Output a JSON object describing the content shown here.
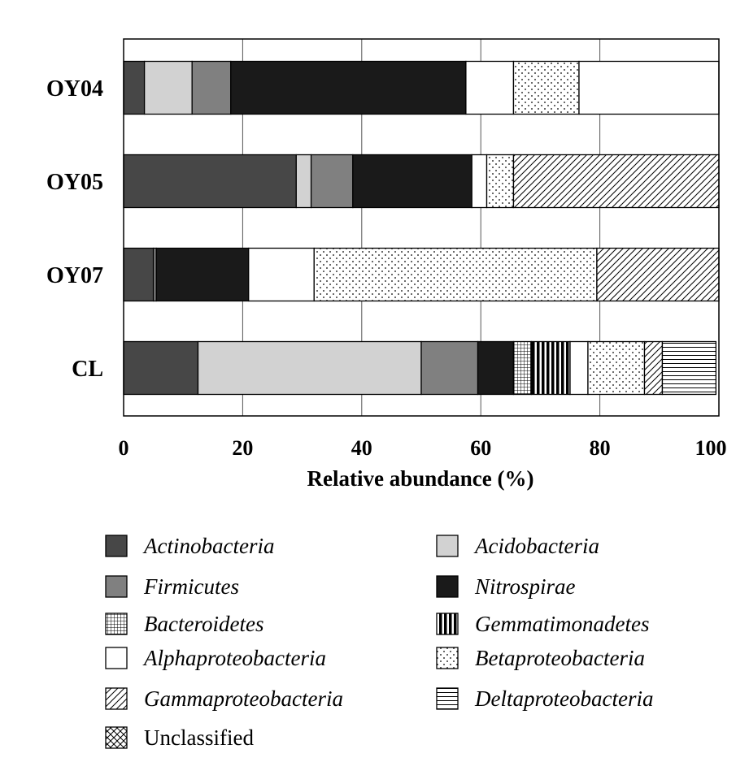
{
  "chart_data": {
    "type": "bar",
    "orientation": "horizontal",
    "stacked": true,
    "title": "",
    "xlabel": "Relative abundance (%)",
    "ylabel": "",
    "xlim": [
      0,
      100
    ],
    "xticks": [
      0,
      20,
      40,
      60,
      80,
      100
    ],
    "grid": "vertical",
    "legend_position": "bottom",
    "categories": [
      "OY04",
      "OY05",
      "OY07",
      "CL"
    ],
    "series": [
      {
        "name": "Actinobacteria",
        "pattern": "dark",
        "values": [
          3.5,
          29,
          5,
          12.5
        ]
      },
      {
        "name": "Acidobacteria",
        "pattern": "light",
        "values": [
          8,
          2.5,
          0,
          37.5
        ]
      },
      {
        "name": "Firmicutes",
        "pattern": "mid",
        "values": [
          6.5,
          7,
          0.5,
          9.5
        ]
      },
      {
        "name": "Nitrospirae",
        "pattern": "black",
        "values": [
          39.5,
          20,
          15.5,
          6
        ]
      },
      {
        "name": "Bacteroidetes",
        "pattern": "grid",
        "values": [
          0,
          0,
          0,
          3
        ]
      },
      {
        "name": "Gemmatimonadetes",
        "pattern": "vstripe",
        "values": [
          0,
          0,
          0,
          6.5
        ]
      },
      {
        "name": "Alphaproteobacteria",
        "pattern": "white",
        "values": [
          8,
          2.5,
          11,
          3
        ]
      },
      {
        "name": "Betaproteobacteria",
        "pattern": "dots",
        "values": [
          11,
          4.5,
          47.5,
          9.5
        ]
      },
      {
        "name": "Gammaproteobacteria",
        "pattern": "diag",
        "values": [
          0,
          34.5,
          20.5,
          3
        ]
      },
      {
        "name": "Deltaproteobacteria",
        "pattern": "hstripe",
        "values": [
          0,
          0,
          0,
          9
        ]
      },
      {
        "name": "Unclassified",
        "pattern": "cross",
        "values": [
          0,
          0,
          0,
          0
        ]
      }
    ],
    "trailing_white_segment": [
      23.5,
      0,
      0,
      0
    ]
  },
  "legend": {
    "items": [
      {
        "name": "Actinobacteria",
        "pattern": "dark",
        "italic": true
      },
      {
        "name": "Acidobacteria",
        "pattern": "light",
        "italic": true
      },
      {
        "name": "Firmicutes",
        "pattern": "mid",
        "italic": true
      },
      {
        "name": "Nitrospirae",
        "pattern": "black",
        "italic": true
      },
      {
        "name": "Bacteroidetes",
        "pattern": "grid",
        "italic": true
      },
      {
        "name": "Gemmatimonadetes",
        "pattern": "vstripe",
        "italic": true
      },
      {
        "name": "Alphaproteobacteria",
        "pattern": "white",
        "italic": true
      },
      {
        "name": "Betaproteobacteria",
        "pattern": "dots",
        "italic": true
      },
      {
        "name": "Gammaproteobacteria",
        "pattern": "diag",
        "italic": true
      },
      {
        "name": "Deltaproteobacteria",
        "pattern": "hstripe",
        "italic": true
      },
      {
        "name": "Unclassified",
        "pattern": "cross",
        "italic": false
      }
    ]
  },
  "colors": {
    "dark": "#474747",
    "light": "#d2d2d2",
    "mid": "#808080",
    "black": "#1a1a1a",
    "white": "#ffffff",
    "stroke": "#000000",
    "grid": "#555555"
  }
}
